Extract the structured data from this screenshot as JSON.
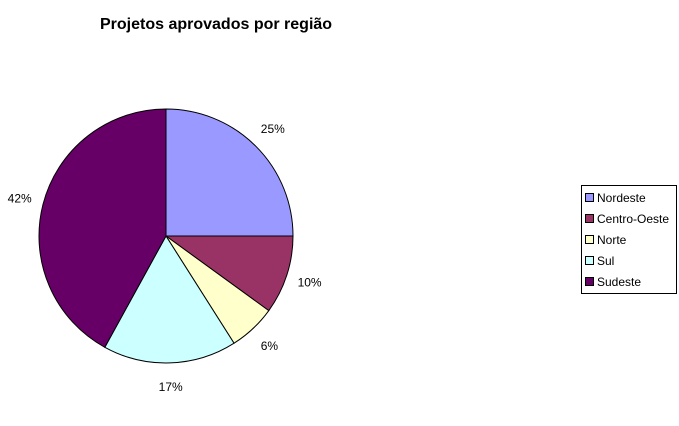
{
  "chart_data": {
    "type": "pie",
    "title": "Projetos aprovados por região",
    "categories": [
      "Nordeste",
      "Centro-Oeste",
      "Norte",
      "Sul",
      "Sudeste"
    ],
    "values": [
      25,
      10,
      6,
      17,
      42
    ],
    "labels": [
      "25%",
      "10%",
      "6%",
      "17%",
      "42%"
    ],
    "colors": [
      "#9999FF",
      "#993366",
      "#FFFFCC",
      "#CCFFFF",
      "#660066"
    ],
    "legend_position": "right",
    "start": "top, clockwise"
  }
}
